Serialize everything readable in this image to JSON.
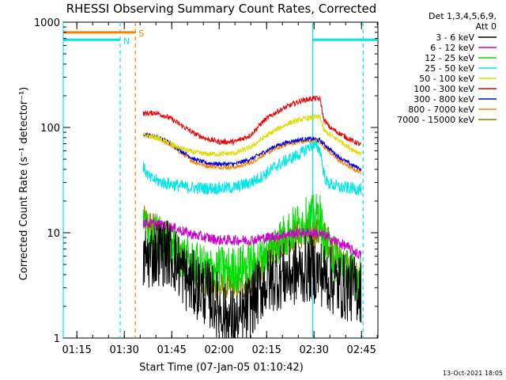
{
  "chart_data": {
    "type": "line",
    "title": "RHESSI Observing Summary Count Rates, Corrected",
    "xlabel": "Start Time (07-Jan-05 01:10:42)",
    "ylabel": "Corrected Count Rate (s⁻¹ detector⁻¹)",
    "yscale": "log",
    "ylim": [
      1,
      1000
    ],
    "xlim_minutes": [
      70.7,
      170.2
    ],
    "y_ticks": [
      {
        "value": 1,
        "label": "1"
      },
      {
        "value": 10,
        "label": "10"
      },
      {
        "value": 100,
        "label": "100"
      },
      {
        "value": 1000,
        "label": "1000"
      }
    ],
    "x_ticks": [
      {
        "value": 75,
        "label": "01:15"
      },
      {
        "value": 90,
        "label": "01:30"
      },
      {
        "value": 105,
        "label": "01:45"
      },
      {
        "value": 120,
        "label": "02:00"
      },
      {
        "value": 135,
        "label": "02:15"
      },
      {
        "value": 150,
        "label": "02:30"
      },
      {
        "value": 165,
        "label": "02:45"
      }
    ],
    "legend": {
      "header": [
        "Det 1,3,4,5,6,9,",
        "Att 0"
      ],
      "placement": "right"
    },
    "series": [
      {
        "name": "3 - 6 keV",
        "color": "#000000",
        "noise": 0.65,
        "points": [
          [
            96,
            5.5
          ],
          [
            100,
            6.5
          ],
          [
            104,
            6.5
          ],
          [
            107,
            5
          ],
          [
            110,
            3.5
          ],
          [
            114,
            3
          ],
          [
            118,
            2.4
          ],
          [
            122,
            1.6
          ],
          [
            126,
            1.3
          ],
          [
            130,
            2.1
          ],
          [
            134,
            3.2
          ],
          [
            138,
            3.8
          ],
          [
            142,
            4
          ],
          [
            146,
            4.3
          ],
          [
            149,
            4.6
          ],
          [
            152,
            4.2
          ],
          [
            156,
            3.4
          ],
          [
            160,
            3
          ],
          [
            165,
            2.9
          ]
        ]
      },
      {
        "name": "6 - 12 keV",
        "color": "#cc00cc",
        "noise": 0.1,
        "points": [
          [
            96,
            12.5
          ],
          [
            100,
            12
          ],
          [
            104,
            11.5
          ],
          [
            108,
            10.5
          ],
          [
            112,
            9.5
          ],
          [
            116,
            9
          ],
          [
            120,
            8.5
          ],
          [
            125,
            8.5
          ],
          [
            130,
            8.5
          ],
          [
            135,
            9
          ],
          [
            140,
            9.5
          ],
          [
            145,
            10
          ],
          [
            150,
            10
          ],
          [
            153,
            9.5
          ],
          [
            156,
            8.5
          ],
          [
            160,
            7.5
          ],
          [
            165,
            6
          ]
        ]
      },
      {
        "name": "12 - 25 keV",
        "color": "#00dd00",
        "noise": 0.45,
        "points": [
          [
            96,
            10
          ],
          [
            100,
            9
          ],
          [
            104,
            8
          ],
          [
            108,
            6
          ],
          [
            112,
            5
          ],
          [
            116,
            4.5
          ],
          [
            120,
            4.5
          ],
          [
            125,
            4.5
          ],
          [
            130,
            5
          ],
          [
            134,
            6
          ],
          [
            138,
            8
          ],
          [
            142,
            10
          ],
          [
            146,
            12.5
          ],
          [
            150,
            14
          ],
          [
            152,
            14.5
          ],
          [
            153,
            8
          ],
          [
            156,
            6
          ],
          [
            160,
            4.5
          ],
          [
            165,
            3.5
          ]
        ]
      },
      {
        "name": "25 - 50 keV",
        "color": "#00e5e5",
        "noise": 0.12,
        "points": [
          [
            96,
            42
          ],
          [
            98,
            33
          ],
          [
            102,
            30
          ],
          [
            106,
            28.5
          ],
          [
            110,
            27
          ],
          [
            115,
            26.5
          ],
          [
            120,
            26.5
          ],
          [
            125,
            27
          ],
          [
            130,
            30
          ],
          [
            134,
            35
          ],
          [
            138,
            43
          ],
          [
            142,
            50
          ],
          [
            146,
            57
          ],
          [
            149,
            68
          ],
          [
            151,
            65
          ],
          [
            152,
            60
          ],
          [
            153,
            38
          ],
          [
            154,
            30
          ],
          [
            158,
            27
          ],
          [
            165,
            26
          ]
        ]
      },
      {
        "name": "50 - 100 keV",
        "color": "#dddd00",
        "noise": 0.05,
        "points": [
          [
            96,
            85
          ],
          [
            100,
            80
          ],
          [
            104,
            72
          ],
          [
            108,
            63
          ],
          [
            112,
            58
          ],
          [
            116,
            56
          ],
          [
            120,
            56
          ],
          [
            125,
            57
          ],
          [
            130,
            65
          ],
          [
            134,
            80
          ],
          [
            138,
            95
          ],
          [
            142,
            110
          ],
          [
            146,
            120
          ],
          [
            150,
            125
          ],
          [
            152,
            125
          ],
          [
            153,
            95
          ],
          [
            155,
            85
          ],
          [
            158,
            75
          ],
          [
            162,
            62
          ],
          [
            165,
            56
          ]
        ]
      },
      {
        "name": "100 - 300 keV",
        "color": "#ee0000",
        "noise": 0.05,
        "points": [
          [
            96,
            135
          ],
          [
            100,
            138
          ],
          [
            104,
            125
          ],
          [
            108,
            105
          ],
          [
            112,
            88
          ],
          [
            116,
            78
          ],
          [
            120,
            73
          ],
          [
            125,
            73
          ],
          [
            130,
            85
          ],
          [
            134,
            115
          ],
          [
            138,
            140
          ],
          [
            142,
            160
          ],
          [
            146,
            180
          ],
          [
            150,
            190
          ],
          [
            152,
            185
          ],
          [
            153,
            120
          ],
          [
            155,
            100
          ],
          [
            158,
            88
          ],
          [
            162,
            75
          ],
          [
            165,
            68
          ]
        ]
      },
      {
        "name": "300 - 800 keV",
        "color": "#0000dd",
        "noise": 0.04,
        "points": [
          [
            96,
            87
          ],
          [
            100,
            82
          ],
          [
            104,
            73
          ],
          [
            108,
            60
          ],
          [
            112,
            50
          ],
          [
            116,
            46
          ],
          [
            120,
            45
          ],
          [
            125,
            45
          ],
          [
            130,
            50
          ],
          [
            134,
            58
          ],
          [
            138,
            67
          ],
          [
            142,
            73
          ],
          [
            146,
            77
          ],
          [
            150,
            78
          ],
          [
            152,
            75
          ],
          [
            155,
            62
          ],
          [
            158,
            52
          ],
          [
            162,
            44
          ],
          [
            165,
            40
          ]
        ]
      },
      {
        "name": "800 - 7000 keV",
        "color": "#ff8000",
        "noise": 0.04,
        "points": [
          [
            96,
            85
          ],
          [
            100,
            80
          ],
          [
            104,
            70
          ],
          [
            108,
            57
          ],
          [
            112,
            47
          ],
          [
            116,
            43
          ],
          [
            120,
            42
          ],
          [
            125,
            42
          ],
          [
            130,
            46
          ],
          [
            134,
            55
          ],
          [
            138,
            63
          ],
          [
            142,
            70
          ],
          [
            146,
            73
          ],
          [
            150,
            75
          ],
          [
            152,
            72
          ],
          [
            155,
            58
          ],
          [
            158,
            48
          ],
          [
            162,
            41
          ],
          [
            165,
            37
          ]
        ]
      },
      {
        "name": "7000 - 15000 keV",
        "color": "#808000",
        "noise": 0.3,
        "points": [
          [
            96,
            13
          ],
          [
            100,
            11
          ],
          [
            104,
            9
          ],
          [
            108,
            6
          ],
          [
            112,
            4
          ],
          [
            116,
            3.2
          ],
          [
            120,
            3
          ],
          [
            125,
            3
          ],
          [
            130,
            3.5
          ],
          [
            134,
            5
          ],
          [
            138,
            7
          ],
          [
            142,
            9
          ],
          [
            146,
            9.8
          ],
          [
            150,
            10
          ],
          [
            153,
            9.5
          ],
          [
            156,
            7
          ],
          [
            160,
            5
          ],
          [
            165,
            3.6
          ]
        ]
      }
    ],
    "flags": [
      {
        "label": "S",
        "color": "#ff8000",
        "start_minute": 70.7,
        "end_minute": 93.5,
        "level": 800,
        "marker_minute": 93.5
      },
      {
        "label": "N",
        "color": "#00e5e5",
        "start_minute": 70.7,
        "end_minute": 88.7,
        "level": 680,
        "marker_minute": 88.7
      },
      {
        "label": "",
        "color": "#00e5e5",
        "start_minute": 149.6,
        "end_minute": 170.2,
        "level": 680,
        "marker_minute": 165.5
      }
    ],
    "vlines": [
      {
        "minute": 70.7,
        "color": "#00e5e5",
        "style": "solid"
      },
      {
        "minute": 88.7,
        "color": "#00e5e5",
        "style": "dashed"
      },
      {
        "minute": 93.5,
        "color": "#ff8000",
        "style": "dashed"
      },
      {
        "minute": 149.6,
        "color": "#00e5e5",
        "style": "solid"
      },
      {
        "minute": 165.5,
        "color": "#00e5e5",
        "style": "dashed"
      }
    ]
  },
  "footer_timestamp": "13-Oct-2021 18:05"
}
